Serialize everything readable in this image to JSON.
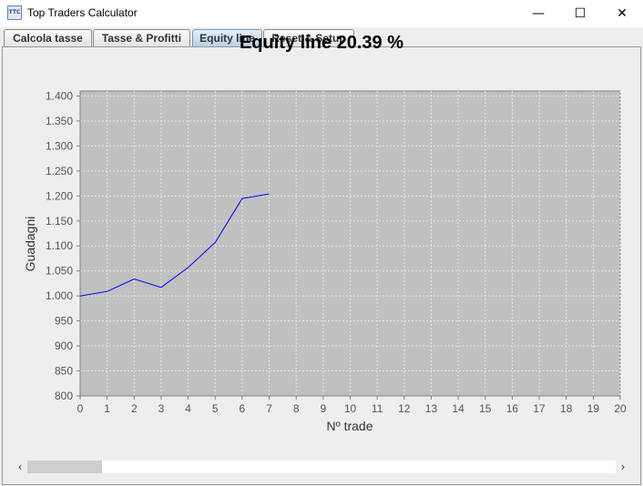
{
  "window": {
    "icon_text": "TTC",
    "title": "Top Traders Calculator",
    "min_glyph": "—",
    "max_glyph": "☐",
    "close_glyph": "✕"
  },
  "tabs": [
    {
      "label": "Calcola tasse",
      "active": false
    },
    {
      "label": "Tasse & Profitti",
      "active": false
    },
    {
      "label": "Equity line",
      "active": true
    },
    {
      "label": "Reset & Setup",
      "active": false
    }
  ],
  "scrollbar": {
    "left_glyph": "‹",
    "right_glyph": "›",
    "thumb_fraction": 0.127
  },
  "colors": {
    "plot_bg": "#c0c0c0",
    "line": "#0000ff",
    "grid": "#e6e6e6"
  },
  "chart_data": {
    "type": "line",
    "title": "Equity line 20.39 %",
    "xlabel": "Nº trade",
    "ylabel": "Guadagni",
    "xlim": [
      0,
      20
    ],
    "ylim": [
      800,
      1410
    ],
    "xticks": [
      "0",
      "1",
      "2",
      "3",
      "4",
      "5",
      "6",
      "7",
      "8",
      "9",
      "10",
      "11",
      "12",
      "13",
      "14",
      "15",
      "16",
      "17",
      "18",
      "19",
      "20"
    ],
    "yticks": [
      {
        "value": 800,
        "label": "800"
      },
      {
        "value": 850,
        "label": "850"
      },
      {
        "value": 900,
        "label": "900"
      },
      {
        "value": 950,
        "label": "950"
      },
      {
        "value": 1000,
        "label": "1.000"
      },
      {
        "value": 1050,
        "label": "1.050"
      },
      {
        "value": 1100,
        "label": "1.100"
      },
      {
        "value": 1150,
        "label": "1.150"
      },
      {
        "value": 1200,
        "label": "1.200"
      },
      {
        "value": 1250,
        "label": "1.250"
      },
      {
        "value": 1300,
        "label": "1.300"
      },
      {
        "value": 1350,
        "label": "1.350"
      },
      {
        "value": 1400,
        "label": "1.400"
      }
    ],
    "grid": true,
    "series": [
      {
        "x": [
          0,
          1,
          2,
          3,
          4,
          5,
          6,
          7
        ],
        "values": [
          1000,
          1009,
          1034,
          1017,
          1057,
          1107,
          1195,
          1204
        ]
      }
    ]
  }
}
